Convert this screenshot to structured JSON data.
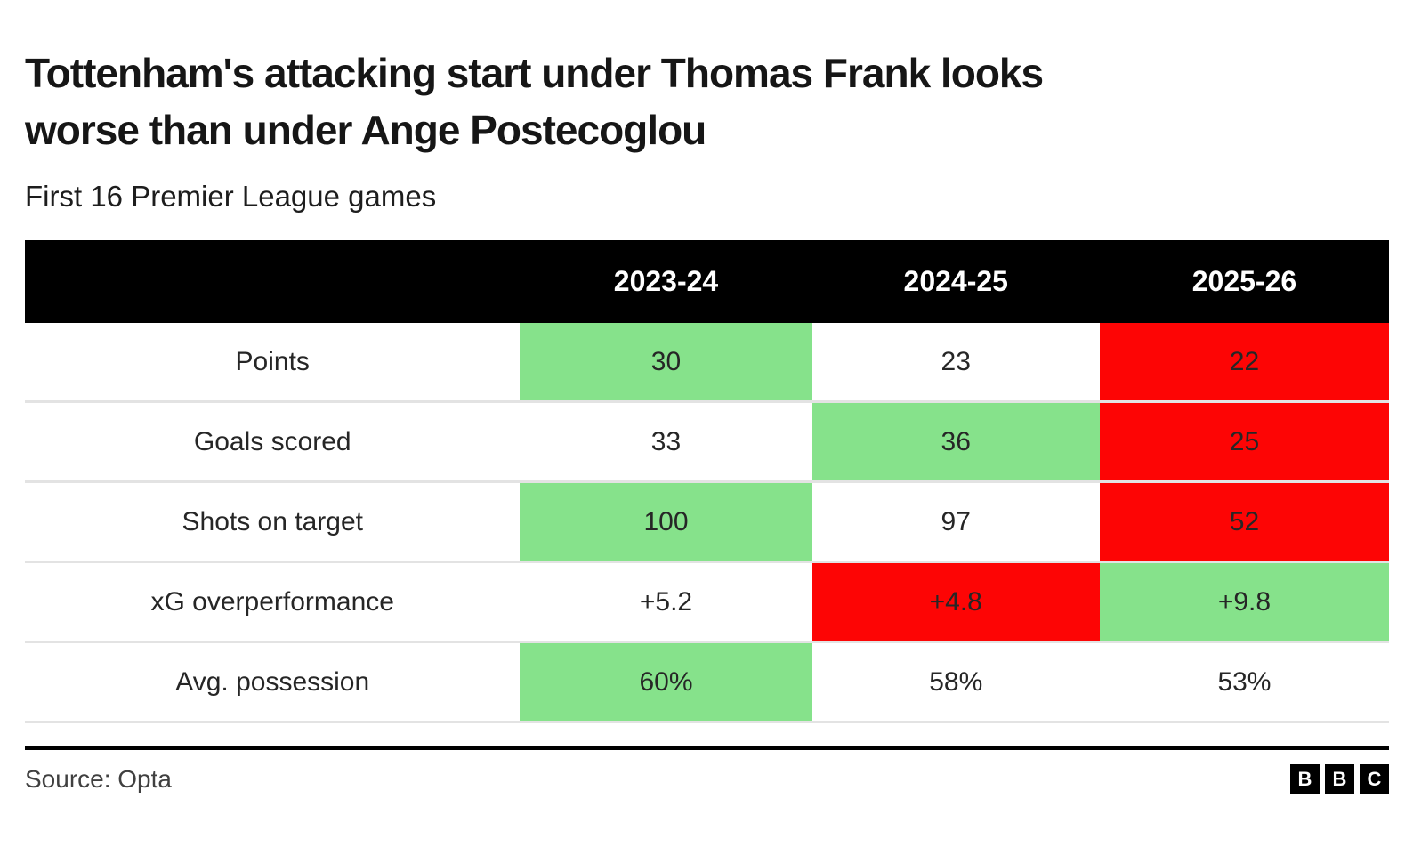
{
  "header": {
    "title_lines": [
      "Tottenham's attacking start under Thomas Frank looks",
      "worse than under Ange Postecoglou"
    ],
    "subtitle": "First 16 Premier League games"
  },
  "colors": {
    "green": "#86e28b",
    "red": "#fd0505",
    "none": "#ffffff",
    "header_bg": "#000000",
    "header_text": "#ffffff",
    "row_separator": "#e3e3e3",
    "cell_text": "#262626"
  },
  "footer": {
    "source": "Source: Opta",
    "logo_letters": [
      "B",
      "B",
      "C"
    ]
  },
  "chart_data": {
    "type": "table",
    "title": "Tottenham's attacking start under Thomas Frank looks worse than under Ange Postecoglou",
    "subtitle": "First 16 Premier League games",
    "source": "Opta",
    "columns": [
      "2023-24",
      "2024-25",
      "2025-26"
    ],
    "rows": [
      {
        "metric": "Points",
        "values": [
          "30",
          "23",
          "22"
        ],
        "cell_colors": [
          "green",
          "none",
          "red"
        ],
        "highlight": [
          "best",
          "neutral",
          "worst"
        ]
      },
      {
        "metric": "Goals scored",
        "values": [
          "33",
          "36",
          "25"
        ],
        "cell_colors": [
          "none",
          "green",
          "red"
        ],
        "highlight": [
          "neutral",
          "best",
          "worst"
        ]
      },
      {
        "metric": "Shots on target",
        "values": [
          "100",
          "97",
          "52"
        ],
        "cell_colors": [
          "green",
          "none",
          "red"
        ],
        "highlight": [
          "best",
          "neutral",
          "worst"
        ]
      },
      {
        "metric": "xG overperformance",
        "values": [
          "+5.2",
          "+4.8",
          "+9.8"
        ],
        "cell_colors": [
          "none",
          "red",
          "green"
        ],
        "highlight": [
          "neutral",
          "worst",
          "best"
        ]
      },
      {
        "metric": "Avg. possession",
        "values": [
          "60%",
          "58%",
          "53%"
        ],
        "cell_colors": [
          "green",
          "none",
          "none"
        ],
        "highlight": [
          "best",
          "neutral",
          "neutral"
        ]
      }
    ]
  }
}
